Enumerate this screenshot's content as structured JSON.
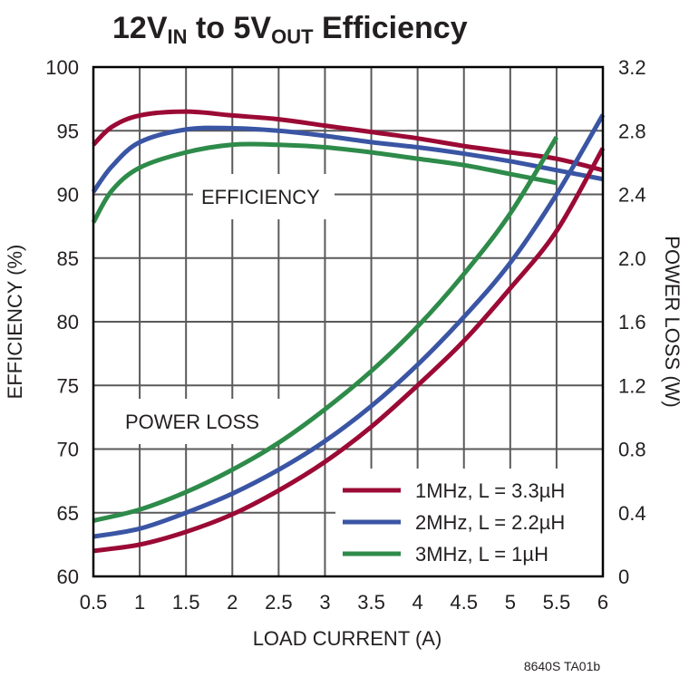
{
  "title": {
    "parts": [
      {
        "text": "12V",
        "sub": false
      },
      {
        "text": "IN",
        "sub": true
      },
      {
        "text": " to 5V",
        "sub": false
      },
      {
        "text": "OUT",
        "sub": true
      },
      {
        "text": " Efficiency",
        "sub": false
      }
    ],
    "plain": "12VIN to 5VOUT Efficiency"
  },
  "annotations": {
    "efficiency_label": "EFFICIENCY",
    "power_loss_label": "POWER LOSS"
  },
  "footnote": "8640S TA01b",
  "colors": {
    "series_1mhz": "#9b0a35",
    "series_2mhz": "#3a55a4",
    "series_3mhz": "#2e8b4a",
    "grid": "#5a5a5a",
    "frame": "#000000"
  },
  "chart_data": {
    "type": "line",
    "title": "12VIN to 5VOUT Efficiency",
    "xlabel": "LOAD CURRENT (A)",
    "ylabel": "EFFICIENCY (%)",
    "y2label": "POWER LOSS (W)",
    "xlim": [
      0.5,
      6
    ],
    "ylim": [
      60,
      100
    ],
    "y2lim": [
      0,
      3.2
    ],
    "x_ticks": [
      "0.5",
      "1",
      "1.5",
      "2",
      "2.5",
      "3",
      "3.5",
      "4",
      "4.5",
      "5",
      "5.5",
      "6"
    ],
    "y_ticks": [
      "60",
      "65",
      "70",
      "75",
      "80",
      "85",
      "90",
      "95",
      "100"
    ],
    "y2_ticks": [
      "0",
      "0.4",
      "0.8",
      "1.2",
      "1.6",
      "2.0",
      "2.4",
      "2.8",
      "3.2"
    ],
    "grid": true,
    "legend_position": "lower right",
    "legend": [
      "1MHz, L = 3.3µH",
      "2MHz, L = 2.2µH",
      "3MHz, L = 1µH"
    ],
    "series": [
      {
        "name": "1MHz, L = 3.3µH",
        "color": "#9b0a35",
        "axis": "efficiency",
        "x": [
          0.5,
          0.7,
          1.0,
          1.5,
          2.0,
          2.5,
          3.0,
          3.5,
          4.0,
          4.5,
          5.0,
          5.5,
          6.0
        ],
        "values": [
          93.9,
          95.3,
          96.2,
          96.5,
          96.2,
          95.9,
          95.4,
          94.9,
          94.4,
          93.8,
          93.3,
          92.8,
          91.9
        ]
      },
      {
        "name": "2MHz, L = 2.2µH",
        "color": "#3a55a4",
        "axis": "efficiency",
        "x": [
          0.5,
          0.7,
          1.0,
          1.5,
          2.0,
          2.5,
          3.0,
          3.5,
          4.0,
          4.5,
          5.0,
          5.5,
          6.0
        ],
        "values": [
          90.2,
          92.2,
          94.1,
          95.1,
          95.2,
          95.0,
          94.6,
          94.1,
          93.7,
          93.2,
          92.6,
          91.9,
          91.2
        ]
      },
      {
        "name": "3MHz, L = 1µH",
        "color": "#2e8b4a",
        "axis": "efficiency",
        "x": [
          0.5,
          0.7,
          1.0,
          1.5,
          2.0,
          2.5,
          3.0,
          3.5,
          4.0,
          4.5,
          5.0,
          5.5
        ],
        "values": [
          87.8,
          90.3,
          92.1,
          93.3,
          93.9,
          93.9,
          93.7,
          93.3,
          92.8,
          92.3,
          91.6,
          90.9
        ]
      },
      {
        "name": "1MHz, L = 3.3µH (power loss)",
        "color": "#9b0a35",
        "axis": "power_loss",
        "x": [
          0.5,
          1.0,
          1.5,
          2.0,
          2.5,
          3.0,
          3.5,
          4.0,
          4.5,
          5.0,
          5.5,
          6.0
        ],
        "values": [
          0.16,
          0.2,
          0.28,
          0.39,
          0.54,
          0.72,
          0.94,
          1.2,
          1.48,
          1.81,
          2.17,
          2.69
        ]
      },
      {
        "name": "2MHz, L = 2.2µH (power loss)",
        "color": "#3a55a4",
        "axis": "power_loss",
        "x": [
          0.5,
          1.0,
          1.5,
          2.0,
          2.5,
          3.0,
          3.5,
          4.0,
          4.5,
          5.0,
          5.5,
          6.0
        ],
        "values": [
          0.25,
          0.3,
          0.4,
          0.52,
          0.67,
          0.85,
          1.07,
          1.33,
          1.63,
          1.97,
          2.4,
          2.9
        ]
      },
      {
        "name": "3MHz, L = 1µH (power loss)",
        "color": "#2e8b4a",
        "axis": "power_loss",
        "x": [
          0.5,
          1.0,
          1.5,
          2.0,
          2.5,
          3.0,
          3.5,
          4.0,
          4.5,
          5.0,
          5.5
        ],
        "values": [
          0.35,
          0.42,
          0.53,
          0.67,
          0.84,
          1.05,
          1.29,
          1.57,
          1.9,
          2.28,
          2.76
        ]
      }
    ]
  }
}
